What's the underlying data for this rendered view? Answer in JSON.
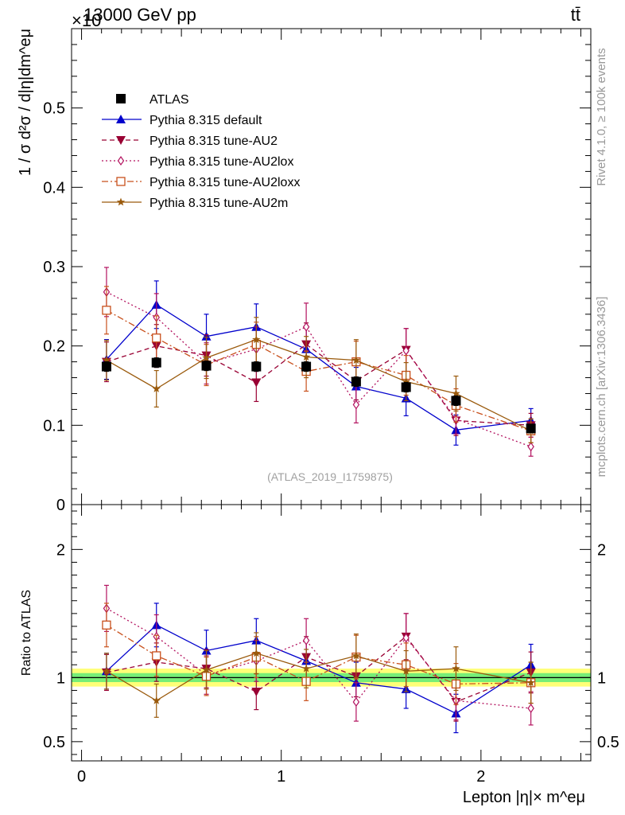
{
  "header": {
    "energy_label": "13000 GeV pp",
    "process_label": "tt̄",
    "exponent_label": "×10",
    "rivet_label": "Rivet 4.1.0, ≥ 100k events",
    "mcplots_label": "mcplots.cern.ch [arXiv:1306.3436]",
    "analysis_label": "(ATLAS_2019_I1759875)"
  },
  "colors": {
    "atlas": "#000000",
    "default": "#0000cc",
    "au2": "#990033",
    "au2lox": "#b3125f",
    "au2loxx": "#c8501c",
    "au2m": "#9a5a0c",
    "band_outer": "#ffff77",
    "band_inner": "#77ee77"
  },
  "chart_data": [
    {
      "type": "line",
      "panel": "main",
      "ylabel": "1 / σ  d²σ / d|η|dm^eμ",
      "ylim": [
        0,
        0.6
      ],
      "yticks": [
        {
          "value": 0,
          "label": "0"
        },
        {
          "value": 0.1,
          "label": "0.1"
        },
        {
          "value": 0.2,
          "label": "0.2"
        },
        {
          "value": 0.3,
          "label": "0.3"
        },
        {
          "value": 0.4,
          "label": "0.4"
        },
        {
          "value": 0.5,
          "label": "0.5"
        }
      ],
      "xlim": [
        -0.05,
        2.55
      ],
      "legend_position": "top-left",
      "x": [
        0.125,
        0.375,
        0.625,
        0.875,
        1.125,
        1.375,
        1.625,
        1.875,
        2.25
      ],
      "series": [
        {
          "key": "atlas",
          "name": "ATLAS",
          "marker": "square",
          "line": "none",
          "values": [
            0.174,
            0.179,
            0.175,
            0.174,
            0.174,
            0.155,
            0.148,
            0.131,
            0.096
          ],
          "errors": [
            0.006,
            0.006,
            0.006,
            0.006,
            0.006,
            0.006,
            0.006,
            0.006,
            0.005
          ]
        },
        {
          "key": "default",
          "name": "Pythia 8.315 default",
          "marker": "triangle",
          "line": "solid",
          "values": [
            0.183,
            0.252,
            0.212,
            0.224,
            0.196,
            0.149,
            0.134,
            0.094,
            0.106
          ],
          "errors": [
            0.025,
            0.03,
            0.028,
            0.029,
            0.027,
            0.024,
            0.022,
            0.019,
            0.015
          ]
        },
        {
          "key": "au2",
          "name": "Pythia 8.315 tune-AU2",
          "marker": "triangle-down",
          "line": "dashed",
          "values": [
            0.18,
            0.2,
            0.188,
            0.154,
            0.202,
            0.156,
            0.195,
            0.106,
            0.1
          ],
          "errors": [
            0.025,
            0.027,
            0.026,
            0.024,
            0.027,
            0.024,
            0.027,
            0.019,
            0.015
          ]
        },
        {
          "key": "au2lox",
          "name": "Pythia 8.315 tune-AU2lox",
          "marker": "diamond-open",
          "line": "dotted",
          "values": [
            0.268,
            0.236,
            0.178,
            0.196,
            0.224,
            0.126,
            0.194,
            0.108,
            0.073
          ],
          "errors": [
            0.031,
            0.03,
            0.026,
            0.028,
            0.03,
            0.023,
            0.028,
            0.019,
            0.012
          ]
        },
        {
          "key": "au2loxx",
          "name": "Pythia 8.315 tune-AU2loxx",
          "marker": "square-open",
          "line": "dashdot",
          "values": [
            0.245,
            0.21,
            0.176,
            0.202,
            0.168,
            0.18,
            0.163,
            0.125,
            0.093
          ],
          "errors": [
            0.03,
            0.028,
            0.026,
            0.028,
            0.025,
            0.026,
            0.025,
            0.021,
            0.015
          ]
        },
        {
          "key": "au2m",
          "name": "Pythia 8.315 tune-AU2m",
          "marker": "star",
          "line": "solid",
          "values": [
            0.182,
            0.146,
            0.185,
            0.208,
            0.186,
            0.182,
            0.155,
            0.14,
            0.093
          ],
          "errors": [
            0.025,
            0.023,
            0.026,
            0.028,
            0.026,
            0.026,
            0.024,
            0.022,
            0.015
          ]
        }
      ]
    },
    {
      "type": "line",
      "panel": "ratio",
      "ylabel": "Ratio to ATLAS",
      "xlabel": "Lepton |η|× m^eμ",
      "ylim": [
        0.35,
        2.35
      ],
      "yticks": [
        {
          "value": 0.5,
          "label": "0.5"
        },
        {
          "value": 1,
          "label": "1"
        },
        {
          "value": 2,
          "label": "2"
        }
      ],
      "xticks": [
        {
          "value": 0,
          "label": "0"
        },
        {
          "value": 1,
          "label": "1"
        },
        {
          "value": 2,
          "label": "2"
        }
      ],
      "xlim": [
        -0.05,
        2.55
      ],
      "reference_band": {
        "inner": [
          0.965,
          1.035
        ],
        "outer": [
          0.93,
          1.07
        ]
      },
      "x": [
        0.125,
        0.375,
        0.625,
        0.875,
        1.125,
        1.375,
        1.625,
        1.875,
        2.25
      ],
      "series": [
        {
          "key": "default",
          "values": [
            1.05,
            1.41,
            1.21,
            1.29,
            1.13,
            0.96,
            0.91,
            0.72,
            1.1
          ],
          "errors": [
            0.14,
            0.17,
            0.16,
            0.17,
            0.16,
            0.16,
            0.15,
            0.15,
            0.16
          ]
        },
        {
          "key": "au2",
          "values": [
            1.04,
            1.12,
            1.07,
            0.89,
            1.16,
            1.01,
            1.32,
            0.81,
            1.04
          ],
          "errors": [
            0.14,
            0.15,
            0.15,
            0.14,
            0.16,
            0.16,
            0.18,
            0.15,
            0.16
          ]
        },
        {
          "key": "au2lox",
          "values": [
            1.54,
            1.32,
            1.02,
            1.13,
            1.29,
            0.81,
            1.31,
            0.82,
            0.76
          ],
          "errors": [
            0.18,
            0.17,
            0.15,
            0.16,
            0.17,
            0.15,
            0.19,
            0.15,
            0.13
          ]
        },
        {
          "key": "au2loxx",
          "values": [
            1.41,
            1.17,
            1.01,
            1.16,
            0.97,
            1.16,
            1.1,
            0.95,
            0.96
          ],
          "errors": [
            0.17,
            0.16,
            0.15,
            0.16,
            0.15,
            0.17,
            0.17,
            0.16,
            0.16
          ]
        },
        {
          "key": "au2m",
          "values": [
            1.05,
            0.82,
            1.06,
            1.19,
            1.07,
            1.17,
            1.05,
            1.07,
            0.96
          ],
          "errors": [
            0.14,
            0.13,
            0.15,
            0.16,
            0.15,
            0.17,
            0.16,
            0.17,
            0.16
          ]
        }
      ]
    }
  ]
}
